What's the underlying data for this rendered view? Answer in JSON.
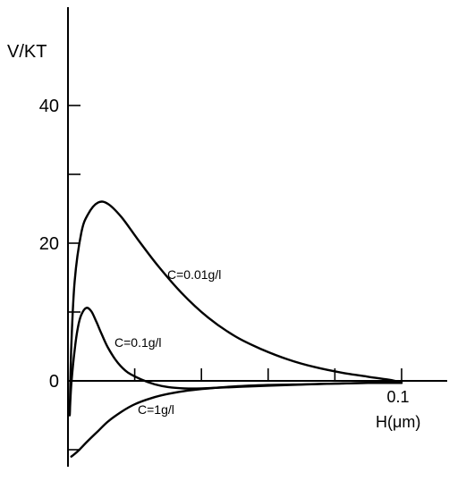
{
  "chart_data": {
    "type": "line",
    "title": "",
    "xlabel": "H(μm)",
    "ylabel": "V/KT",
    "xlim": [
      0,
      0.11
    ],
    "ylim": [
      -15,
      45
    ],
    "x_ticks": [
      0.02,
      0.04,
      0.06,
      0.08,
      0.1
    ],
    "x_tick_labels": [
      "",
      "",
      "",
      "",
      "0.1"
    ],
    "y_ticks": [
      -10,
      0,
      10,
      20,
      30,
      40
    ],
    "y_tick_labels": [
      "",
      "0",
      "",
      "20",
      "",
      "40"
    ],
    "grid": false,
    "legend": "none",
    "series": [
      {
        "name": "C=0.01g/l",
        "x": [
          0.0005,
          0.001,
          0.002,
          0.004,
          0.006,
          0.009,
          0.012,
          0.016,
          0.021,
          0.027,
          0.034,
          0.042,
          0.05,
          0.058,
          0.066,
          0.074,
          0.082,
          0.09,
          0.097,
          0.1
        ],
        "y": [
          -5,
          5,
          14.5,
          21.5,
          24.2,
          25.9,
          25.7,
          23.8,
          20.5,
          16.7,
          12.8,
          9.2,
          6.5,
          4.6,
          3.1,
          2.0,
          1.2,
          0.6,
          0.1,
          -0.3
        ]
      },
      {
        "name": "C=0.1g/l",
        "x": [
          0.0005,
          0.001,
          0.002,
          0.003,
          0.004,
          0.0055,
          0.007,
          0.0085,
          0.01,
          0.012,
          0.015,
          0.018,
          0.022,
          0.026,
          0.03,
          0.035,
          0.04,
          0.05,
          0.06,
          0.08,
          0.1
        ],
        "y": [
          -5,
          -0.5,
          4.5,
          7.8,
          9.6,
          10.6,
          10.1,
          8.6,
          6.9,
          4.8,
          2.6,
          1.2,
          0.2,
          -0.5,
          -0.9,
          -1.1,
          -1.1,
          -0.9,
          -0.7,
          -0.4,
          -0.2
        ]
      },
      {
        "name": "C=1g/l",
        "x": [
          0.001,
          0.003,
          0.006,
          0.009,
          0.012,
          0.016,
          0.02,
          0.025,
          0.03,
          0.036,
          0.042,
          0.05,
          0.06,
          0.07,
          0.08,
          0.09,
          0.1
        ],
        "y": [
          -11,
          -10.2,
          -8.7,
          -7.3,
          -5.9,
          -4.5,
          -3.4,
          -2.5,
          -1.9,
          -1.4,
          -1.1,
          -0.8,
          -0.6,
          -0.5,
          -0.4,
          -0.3,
          -0.3
        ]
      }
    ]
  }
}
